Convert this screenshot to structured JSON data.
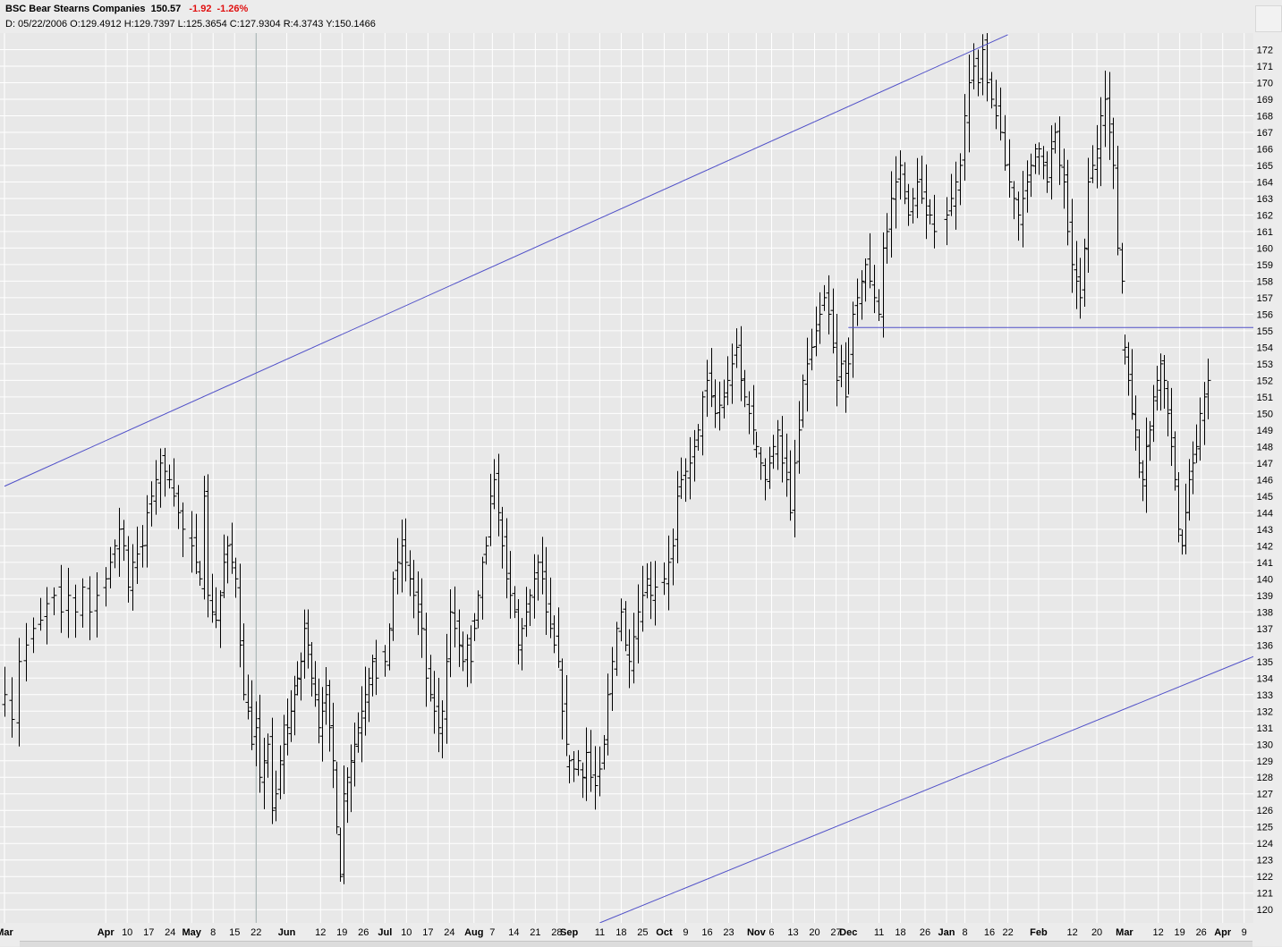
{
  "header": {
    "symbol": "BSC",
    "name": "Bear Stearns Companies",
    "last": "150.57",
    "change": "-1.92",
    "change_pct": "-1.26%",
    "ohlc_line": "D: 05/22/2006 O:129.4912 H:129.7397 L:125.3654 C:127.9304 R:4.3743 Y:150.1466"
  },
  "colors": {
    "background": "#e8e8e8",
    "grid": "#ffffff",
    "bars": "#000000",
    "trendlines": "#5050c8",
    "negative_change": "#e01010"
  },
  "chart_data": {
    "type": "ohlc",
    "grid": true,
    "y_axis": {
      "position": "right",
      "ylim": [
        119.2,
        173
      ],
      "ticks": [
        120,
        121,
        122,
        123,
        124,
        125,
        126,
        127,
        128,
        129,
        130,
        131,
        132,
        133,
        134,
        135,
        136,
        137,
        138,
        139,
        140,
        141,
        142,
        143,
        144,
        145,
        146,
        147,
        148,
        149,
        150,
        151,
        152,
        153,
        154,
        155,
        156,
        157,
        158,
        159,
        160,
        161,
        162,
        163,
        164,
        165,
        166,
        167,
        168,
        169,
        170,
        171,
        172
      ]
    },
    "x_axis": {
      "start": "2006-03-01",
      "end": "2007-04-12",
      "ticks": [
        {
          "label": "Mar",
          "date": "2006-03-01"
        },
        {
          "label": "Apr",
          "date": "2006-04-03"
        },
        {
          "label": "10",
          "date": "2006-04-10"
        },
        {
          "label": "17",
          "date": "2006-04-17"
        },
        {
          "label": "24",
          "date": "2006-04-24"
        },
        {
          "label": "May",
          "date": "2006-05-01"
        },
        {
          "label": "8",
          "date": "2006-05-08"
        },
        {
          "label": "15",
          "date": "2006-05-15"
        },
        {
          "label": "22",
          "date": "2006-05-22"
        },
        {
          "label": "Jun",
          "date": "2006-06-01"
        },
        {
          "label": "12",
          "date": "2006-06-12"
        },
        {
          "label": "19",
          "date": "2006-06-19"
        },
        {
          "label": "26",
          "date": "2006-06-26"
        },
        {
          "label": "Jul",
          "date": "2006-07-03"
        },
        {
          "label": "10",
          "date": "2006-07-10"
        },
        {
          "label": "17",
          "date": "2006-07-17"
        },
        {
          "label": "24",
          "date": "2006-07-24"
        },
        {
          "label": "Aug",
          "date": "2006-08-01"
        },
        {
          "label": "7",
          "date": "2006-08-07"
        },
        {
          "label": "14",
          "date": "2006-08-14"
        },
        {
          "label": "21",
          "date": "2006-08-21"
        },
        {
          "label": "28",
          "date": "2006-08-28"
        },
        {
          "label": "Sep",
          "date": "2006-09-01"
        },
        {
          "label": "11",
          "date": "2006-09-11"
        },
        {
          "label": "18",
          "date": "2006-09-18"
        },
        {
          "label": "25",
          "date": "2006-09-25"
        },
        {
          "label": "Oct",
          "date": "2006-10-02"
        },
        {
          "label": "9",
          "date": "2006-10-09"
        },
        {
          "label": "16",
          "date": "2006-10-16"
        },
        {
          "label": "23",
          "date": "2006-10-23"
        },
        {
          "label": "Nov",
          "date": "2006-11-01"
        },
        {
          "label": "6",
          "date": "2006-11-06"
        },
        {
          "label": "13",
          "date": "2006-11-13"
        },
        {
          "label": "20",
          "date": "2006-11-20"
        },
        {
          "label": "27",
          "date": "2006-11-27"
        },
        {
          "label": "Dec",
          "date": "2006-12-01"
        },
        {
          "label": "11",
          "date": "2006-12-11"
        },
        {
          "label": "18",
          "date": "2006-12-18"
        },
        {
          "label": "26",
          "date": "2006-12-26"
        },
        {
          "label": "Jan",
          "date": "2007-01-02"
        },
        {
          "label": "8",
          "date": "2007-01-08"
        },
        {
          "label": "16",
          "date": "2007-01-16"
        },
        {
          "label": "22",
          "date": "2007-01-22"
        },
        {
          "label": "Feb",
          "date": "2007-02-01"
        },
        {
          "label": "12",
          "date": "2007-02-12"
        },
        {
          "label": "20",
          "date": "2007-02-20"
        },
        {
          "label": "Mar",
          "date": "2007-03-01"
        },
        {
          "label": "12",
          "date": "2007-03-12"
        },
        {
          "label": "19",
          "date": "2007-03-19"
        },
        {
          "label": "26",
          "date": "2007-03-26"
        },
        {
          "label": "Apr",
          "date": "2007-04-02"
        },
        {
          "label": "9",
          "date": "2007-04-09"
        }
      ]
    },
    "cursor_date": "2006-05-22",
    "trendlines": [
      {
        "name": "upper channel",
        "points": [
          [
            "2006-03-01",
            145.6
          ],
          [
            "2007-01-22",
            172.9
          ]
        ]
      },
      {
        "name": "lower channel",
        "points": [
          [
            "2006-09-11",
            119.2
          ],
          [
            "2007-04-12",
            135.3
          ]
        ]
      },
      {
        "name": "support",
        "points": [
          [
            "2006-12-01",
            155.2
          ],
          [
            "2007-04-12",
            155.2
          ]
        ]
      }
    ],
    "segments": [
      {
        "from": "2006-03-01",
        "to": "2006-03-31",
        "values": [
          133,
          131.5,
          135,
          136,
          137,
          137.5,
          138.5,
          139,
          138,
          139,
          138,
          139.5,
          138,
          139
        ]
      },
      {
        "from": "2006-04-03",
        "to": "2006-04-28",
        "values": [
          140,
          141,
          142,
          143,
          142,
          139.5,
          141,
          141.5,
          142,
          144,
          145,
          146,
          147,
          146.5,
          146,
          145,
          144,
          143
        ]
      },
      {
        "from": "2006-05-01",
        "to": "2006-05-31",
        "values": [
          142,
          141,
          140,
          145,
          139,
          138,
          137.5,
          139,
          141,
          142,
          141,
          140,
          136,
          133,
          132,
          130,
          131,
          128,
          129,
          130,
          126,
          127,
          129,
          130
        ]
      },
      {
        "from": "2006-06-01",
        "to": "2006-06-30",
        "values": [
          131,
          132,
          133,
          134,
          135,
          137,
          136,
          134,
          133,
          131,
          132,
          133,
          131,
          129,
          125,
          122,
          127,
          128,
          129,
          130,
          131,
          132,
          133,
          134,
          135,
          134
        ]
      },
      {
        "from": "2006-07-03",
        "to": "2006-07-31",
        "values": [
          135,
          137,
          140,
          141,
          142,
          141,
          140,
          139,
          138,
          137,
          134,
          133,
          132,
          131,
          132,
          135,
          138,
          137,
          136,
          135,
          136,
          135
        ]
      },
      {
        "from": "2006-08-01",
        "to": "2006-08-31",
        "values": [
          137,
          139,
          141,
          142,
          145,
          146,
          144,
          142,
          140,
          139,
          138,
          136,
          137,
          138,
          139,
          140,
          141,
          140,
          138,
          137,
          136,
          135,
          132,
          130
        ]
      },
      {
        "from": "2006-09-01",
        "to": "2006-09-29",
        "values": [
          129,
          128.5,
          129,
          128,
          129.5,
          128,
          127.5,
          128.5,
          130,
          133,
          135,
          137,
          138,
          136,
          135,
          136.5,
          138,
          139,
          140,
          139,
          139.5
        ]
      },
      {
        "from": "2006-10-02",
        "to": "2006-10-31",
        "values": [
          140,
          141,
          142,
          145,
          146,
          146.5,
          147,
          148,
          149,
          151,
          152,
          151,
          150,
          150.5,
          151,
          152,
          153,
          154,
          152,
          151,
          150,
          149
        ]
      },
      {
        "from": "2006-11-01",
        "to": "2006-11-30",
        "values": [
          148,
          147,
          146,
          147,
          148,
          149,
          147,
          146,
          144,
          147,
          149,
          152,
          153,
          154,
          155,
          156,
          157,
          156,
          154,
          152,
          153,
          151
        ]
      },
      {
        "from": "2006-12-01",
        "to": "2006-12-29",
        "values": [
          153,
          156,
          157,
          158,
          159,
          158,
          157,
          156,
          160,
          161,
          163,
          164,
          165,
          163,
          162,
          163,
          164,
          163,
          162,
          162,
          161
        ]
      },
      {
        "from": "2007-01-02",
        "to": "2007-01-31",
        "values": [
          162,
          163,
          164,
          165,
          168,
          170,
          171,
          170,
          172,
          170,
          169,
          168,
          167,
          165,
          164,
          163,
          162,
          163,
          164,
          165,
          166
        ]
      },
      {
        "from": "2007-02-01",
        "to": "2007-02-28",
        "values": [
          166,
          165,
          164,
          166,
          167,
          165,
          164,
          161,
          159,
          158,
          157,
          160,
          164,
          165,
          166,
          168,
          169,
          167,
          165,
          160,
          158
        ]
      },
      {
        "from": "2007-03-01",
        "to": "2007-03-28",
        "values": [
          154,
          152,
          150,
          149,
          147,
          146,
          148,
          149,
          151,
          152,
          153,
          152,
          150,
          148,
          146,
          143,
          142,
          144,
          146,
          147,
          148,
          150,
          151,
          152
        ]
      }
    ]
  }
}
